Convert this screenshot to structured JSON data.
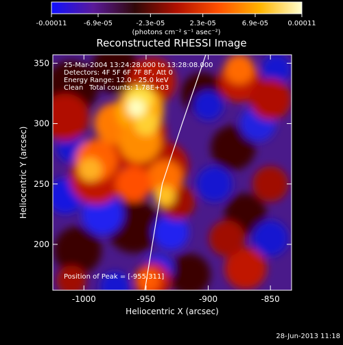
{
  "colorbar": {
    "tick_labels": [
      "-0.00011",
      "-6.9e-05",
      "-2.3e-05",
      "2.3e-05",
      "6.9e-05",
      "0.00011"
    ],
    "tick_values": [
      -0.00011,
      -6.9e-05,
      -2.3e-05,
      2.3e-05,
      6.9e-05,
      0.00011
    ],
    "range": [
      -0.00011,
      0.00011
    ],
    "unit_label": "(photons cm⁻² s⁻¹ asec⁻²)",
    "colors": [
      "#1010ff",
      "#5a1a9a",
      "#300808",
      "#b01000",
      "#ff5000",
      "#ffb400",
      "#ffffd0"
    ]
  },
  "title": "Reconstructed RHESSI Image",
  "annotations": {
    "time_range": "25-Mar-2004 13:24:28.000 to 13:28:08.000",
    "detectors": "Detectors: 4F 5F 6F 7F 8F, Att 0",
    "energy_range": "Energy Range: 12.0 - 25.0 keV",
    "method": "Clean",
    "total_counts": "Total counts: 1.78E+03",
    "peak": "Position of Peak = [-955,311]"
  },
  "footer_date": "28-Jun-2013 11:18",
  "chart_data": {
    "type": "heatmap",
    "title": "Reconstructed RHESSI Image",
    "xlabel": "Heliocentric X (arcsec)",
    "ylabel": "Heliocentric Y (arcsec)",
    "xlim": [
      -1025,
      -833
    ],
    "ylim": [
      162,
      357
    ],
    "x_ticks": [
      -1000,
      -950,
      -900,
      -850
    ],
    "y_ticks": [
      200,
      250,
      300,
      350
    ],
    "x_tick_labels": [
      "-1000",
      "-950",
      "-900",
      "-850"
    ],
    "y_tick_labels": [
      "200",
      "250",
      "300",
      "350"
    ],
    "peak": [
      -955,
      311
    ],
    "limb_curve": [
      [
        -951,
        162
      ],
      [
        -945,
        200
      ],
      [
        -937,
        250
      ],
      [
        -921,
        300
      ],
      [
        -902,
        357
      ]
    ],
    "colormap": "rainbow-blue-purple-red-yellow",
    "value_range": [
      -0.00011,
      0.00011
    ]
  }
}
